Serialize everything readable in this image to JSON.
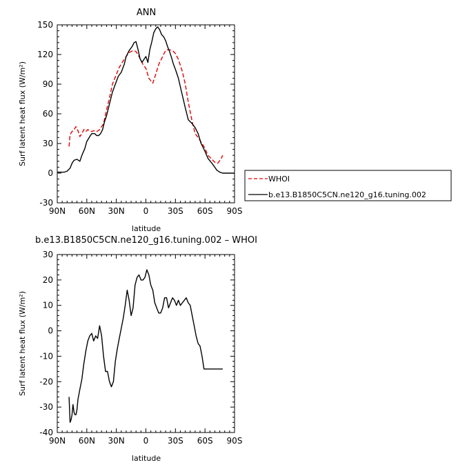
{
  "chart_data": [
    {
      "type": "line",
      "title": "ANN",
      "xlabel": "latitude",
      "ylabel": "Surf latent heat flux (W/m²)",
      "x_direction": "reversed (90N on left, 90S on right)",
      "xlim": [
        90,
        -90
      ],
      "ylim": [
        -30,
        150
      ],
      "xticks": [
        90,
        60,
        30,
        0,
        -30,
        -60,
        -90
      ],
      "xtick_labels": [
        "90N",
        "60N",
        "30N",
        "0",
        "30S",
        "60S",
        "90S"
      ],
      "yticks": [
        -30,
        0,
        30,
        60,
        90,
        120,
        150
      ],
      "ytick_labels": [
        "-30",
        "0",
        "30",
        "60",
        "90",
        "120",
        "150"
      ],
      "legend_position": "right, outside plot",
      "series": [
        {
          "name": "WHOI",
          "color": "#e00000",
          "style": "dashed",
          "x": [
            78,
            77,
            75,
            73,
            71,
            69,
            67,
            65,
            63,
            61,
            59,
            57,
            55,
            53,
            50,
            47,
            43,
            40,
            37,
            34,
            30,
            27,
            24,
            20,
            17,
            13,
            10,
            7,
            3,
            0,
            -3,
            -7,
            -10,
            -13,
            -17,
            -20,
            -23,
            -27,
            -30,
            -33,
            -37,
            -40,
            -43,
            -47,
            -50,
            -53,
            -57,
            -60,
            -63,
            -67,
            -70,
            -73,
            -76,
            -78
          ],
          "values": [
            27,
            39,
            42,
            44,
            47,
            43,
            37,
            40,
            44,
            42,
            44,
            43,
            42,
            43,
            42,
            44,
            50,
            64,
            76,
            90,
            100,
            107,
            112,
            118,
            122,
            124,
            123,
            118,
            110,
            106,
            96,
            91,
            100,
            110,
            118,
            124,
            125,
            124,
            121,
            115,
            103,
            90,
            72,
            52,
            40,
            36,
            30,
            25,
            18,
            14,
            11,
            10,
            14,
            18
          ]
        },
        {
          "name": "b.e13.B1850C5CN.ne120_g16.tuning.002",
          "color": "#000000",
          "style": "solid",
          "x": [
            90,
            83,
            80,
            77,
            75,
            73,
            70,
            67,
            65,
            62,
            60,
            57,
            55,
            52,
            50,
            48,
            46,
            44,
            42,
            40,
            37,
            34,
            31,
            28,
            25,
            22,
            20,
            17,
            14,
            12,
            10,
            8,
            6,
            4,
            2,
            0,
            -2,
            -4,
            -6,
            -8,
            -10,
            -12,
            -14,
            -16,
            -18,
            -20,
            -22,
            -24,
            -26,
            -28,
            -30,
            -33,
            -36,
            -40,
            -43,
            -47,
            -50,
            -53,
            -56,
            -60,
            -63,
            -67,
            -70,
            -72,
            -75,
            -78,
            -80,
            -84,
            -90
          ],
          "values": [
            1,
            1,
            2,
            5,
            10,
            13,
            14,
            12,
            18,
            25,
            32,
            37,
            40,
            40,
            38,
            38,
            40,
            44,
            52,
            58,
            70,
            82,
            90,
            98,
            102,
            110,
            118,
            124,
            128,
            132,
            133,
            125,
            116,
            112,
            115,
            118,
            112,
            125,
            133,
            142,
            146,
            148,
            145,
            140,
            138,
            134,
            128,
            123,
            117,
            110,
            105,
            96,
            83,
            66,
            54,
            50,
            46,
            40,
            30,
            22,
            15,
            10,
            6,
            3,
            1,
            0,
            0,
            0,
            0
          ]
        }
      ]
    },
    {
      "type": "line",
      "title": "b.e13.B1850C5CN.ne120_g16.tuning.002 – WHOI",
      "xlabel": "latitude",
      "ylabel": "Surf latent heat flux (W/m²)",
      "x_direction": "reversed (90N on left, 90S on right)",
      "xlim": [
        90,
        -90
      ],
      "ylim": [
        -40,
        30
      ],
      "xticks": [
        90,
        60,
        30,
        0,
        -30,
        -60,
        -90
      ],
      "xtick_labels": [
        "90N",
        "60N",
        "30N",
        "0",
        "30S",
        "60S",
        "90S"
      ],
      "yticks": [
        -40,
        -30,
        -20,
        -10,
        0,
        10,
        20,
        30
      ],
      "ytick_labels": [
        "-40",
        "-30",
        "-20",
        "-10",
        "0",
        "10",
        "20",
        "30"
      ],
      "series": [
        {
          "color": "#000000",
          "style": "solid",
          "x": [
            78,
            77,
            76,
            75,
            74,
            73,
            72,
            71,
            70,
            69,
            67,
            65,
            63,
            61,
            59,
            57,
            55,
            53,
            51,
            49,
            47,
            45,
            43,
            41,
            39,
            37,
            35,
            33,
            31,
            29,
            27,
            25,
            23,
            21,
            19,
            17,
            15,
            13,
            11,
            9,
            7,
            5,
            3,
            1,
            -1,
            -3,
            -5,
            -7,
            -9,
            -11,
            -13,
            -15,
            -17,
            -19,
            -21,
            -23,
            -25,
            -27,
            -29,
            -31,
            -33,
            -35,
            -37,
            -39,
            -41,
            -43,
            -45,
            -47,
            -49,
            -51,
            -53,
            -55,
            -57,
            -59,
            -61,
            -63,
            -65,
            -67,
            -69,
            -71,
            -73,
            -75,
            -77,
            -78
          ],
          "values": [
            -26,
            -36,
            -35,
            -33,
            -29,
            -32,
            -33,
            -33,
            -31,
            -27,
            -23,
            -19,
            -13,
            -8,
            -4,
            -2,
            -1,
            -4,
            -2,
            -3,
            2,
            -2,
            -10,
            -16,
            -16,
            -20,
            -22,
            -20,
            -12,
            -7,
            -3,
            1,
            5,
            10,
            16,
            12,
            6,
            9,
            18,
            21,
            22,
            20,
            20,
            21,
            24,
            22,
            18,
            16,
            11,
            9,
            7,
            7,
            9,
            13,
            13,
            9,
            11,
            13,
            12,
            10,
            12,
            10,
            11,
            12,
            13,
            11,
            10,
            6,
            2,
            -2,
            -5,
            -6,
            -10,
            -15,
            -15,
            -15,
            -15,
            -15,
            -15,
            -15,
            -15,
            -15,
            -15,
            -15
          ]
        }
      ]
    }
  ]
}
